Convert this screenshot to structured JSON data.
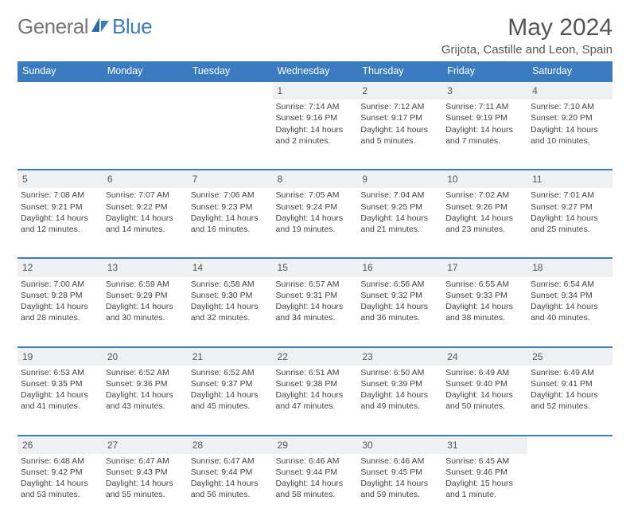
{
  "brand": {
    "part1": "General",
    "part2": "Blue"
  },
  "title": "May 2024",
  "location": "Grijota, Castille and Leon, Spain",
  "colors": {
    "accent": "#3b7bbf",
    "daynum_bg": "#eff0f1",
    "text": "#444"
  },
  "weekdays": [
    "Sunday",
    "Monday",
    "Tuesday",
    "Wednesday",
    "Thursday",
    "Friday",
    "Saturday"
  ],
  "weeks": [
    [
      null,
      null,
      null,
      {
        "n": "1",
        "sr": "7:14 AM",
        "ss": "9:16 PM",
        "dl": "14 hours and 2 minutes."
      },
      {
        "n": "2",
        "sr": "7:12 AM",
        "ss": "9:17 PM",
        "dl": "14 hours and 5 minutes."
      },
      {
        "n": "3",
        "sr": "7:11 AM",
        "ss": "9:19 PM",
        "dl": "14 hours and 7 minutes."
      },
      {
        "n": "4",
        "sr": "7:10 AM",
        "ss": "9:20 PM",
        "dl": "14 hours and 10 minutes."
      }
    ],
    [
      {
        "n": "5",
        "sr": "7:08 AM",
        "ss": "9:21 PM",
        "dl": "14 hours and 12 minutes."
      },
      {
        "n": "6",
        "sr": "7:07 AM",
        "ss": "9:22 PM",
        "dl": "14 hours and 14 minutes."
      },
      {
        "n": "7",
        "sr": "7:06 AM",
        "ss": "9:23 PM",
        "dl": "14 hours and 16 minutes."
      },
      {
        "n": "8",
        "sr": "7:05 AM",
        "ss": "9:24 PM",
        "dl": "14 hours and 19 minutes."
      },
      {
        "n": "9",
        "sr": "7:04 AM",
        "ss": "9:25 PM",
        "dl": "14 hours and 21 minutes."
      },
      {
        "n": "10",
        "sr": "7:02 AM",
        "ss": "9:26 PM",
        "dl": "14 hours and 23 minutes."
      },
      {
        "n": "11",
        "sr": "7:01 AM",
        "ss": "9:27 PM",
        "dl": "14 hours and 25 minutes."
      }
    ],
    [
      {
        "n": "12",
        "sr": "7:00 AM",
        "ss": "9:28 PM",
        "dl": "14 hours and 28 minutes."
      },
      {
        "n": "13",
        "sr": "6:59 AM",
        "ss": "9:29 PM",
        "dl": "14 hours and 30 minutes."
      },
      {
        "n": "14",
        "sr": "6:58 AM",
        "ss": "9:30 PM",
        "dl": "14 hours and 32 minutes."
      },
      {
        "n": "15",
        "sr": "6:57 AM",
        "ss": "9:31 PM",
        "dl": "14 hours and 34 minutes."
      },
      {
        "n": "16",
        "sr": "6:56 AM",
        "ss": "9:32 PM",
        "dl": "14 hours and 36 minutes."
      },
      {
        "n": "17",
        "sr": "6:55 AM",
        "ss": "9:33 PM",
        "dl": "14 hours and 38 minutes."
      },
      {
        "n": "18",
        "sr": "6:54 AM",
        "ss": "9:34 PM",
        "dl": "14 hours and 40 minutes."
      }
    ],
    [
      {
        "n": "19",
        "sr": "6:53 AM",
        "ss": "9:35 PM",
        "dl": "14 hours and 41 minutes."
      },
      {
        "n": "20",
        "sr": "6:52 AM",
        "ss": "9:36 PM",
        "dl": "14 hours and 43 minutes."
      },
      {
        "n": "21",
        "sr": "6:52 AM",
        "ss": "9:37 PM",
        "dl": "14 hours and 45 minutes."
      },
      {
        "n": "22",
        "sr": "6:51 AM",
        "ss": "9:38 PM",
        "dl": "14 hours and 47 minutes."
      },
      {
        "n": "23",
        "sr": "6:50 AM",
        "ss": "9:39 PM",
        "dl": "14 hours and 49 minutes."
      },
      {
        "n": "24",
        "sr": "6:49 AM",
        "ss": "9:40 PM",
        "dl": "14 hours and 50 minutes."
      },
      {
        "n": "25",
        "sr": "6:49 AM",
        "ss": "9:41 PM",
        "dl": "14 hours and 52 minutes."
      }
    ],
    [
      {
        "n": "26",
        "sr": "6:48 AM",
        "ss": "9:42 PM",
        "dl": "14 hours and 53 minutes."
      },
      {
        "n": "27",
        "sr": "6:47 AM",
        "ss": "9:43 PM",
        "dl": "14 hours and 55 minutes."
      },
      {
        "n": "28",
        "sr": "6:47 AM",
        "ss": "9:44 PM",
        "dl": "14 hours and 56 minutes."
      },
      {
        "n": "29",
        "sr": "6:46 AM",
        "ss": "9:44 PM",
        "dl": "14 hours and 58 minutes."
      },
      {
        "n": "30",
        "sr": "6:46 AM",
        "ss": "9:45 PM",
        "dl": "14 hours and 59 minutes."
      },
      {
        "n": "31",
        "sr": "6:45 AM",
        "ss": "9:46 PM",
        "dl": "15 hours and 1 minute."
      },
      null
    ]
  ],
  "labels": {
    "sunrise": "Sunrise:",
    "sunset": "Sunset:",
    "daylight": "Daylight:"
  }
}
